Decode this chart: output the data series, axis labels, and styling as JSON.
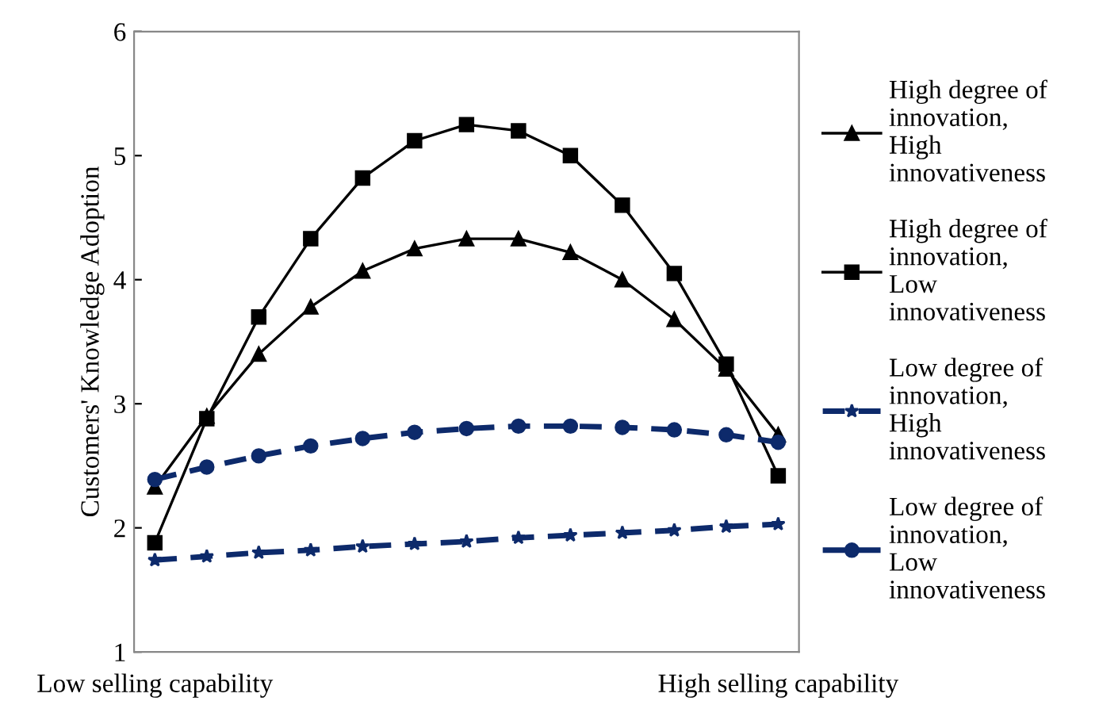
{
  "chart_data": {
    "type": "line",
    "ylabel": "Customers' Knowledge Adoption",
    "categories": [
      "Low selling capability",
      null,
      null,
      null,
      null,
      null,
      null,
      null,
      null,
      null,
      null,
      null,
      "High selling capability"
    ],
    "ylim": [
      1,
      6
    ],
    "yticks": [
      1,
      2,
      3,
      4,
      5,
      6
    ],
    "grid": false,
    "legend": "right",
    "series": [
      {
        "name": "High degree of innovation, High innovativeness",
        "color": "#000000",
        "marker": "triangle",
        "line_style": "solid",
        "values": [
          2.33,
          2.9,
          3.4,
          3.78,
          4.07,
          4.25,
          4.33,
          4.33,
          4.22,
          4.0,
          3.68,
          3.28,
          2.75
        ]
      },
      {
        "name": "High degree of innovation, Low innovativeness",
        "color": "#000000",
        "marker": "square",
        "line_style": "solid",
        "values": [
          1.88,
          2.88,
          3.7,
          4.33,
          4.82,
          5.12,
          5.25,
          5.2,
          5.0,
          4.6,
          4.05,
          3.32,
          2.42
        ]
      },
      {
        "name": "Low degree of innovation, High innovativeness",
        "color": "#0d2a6b",
        "marker": "star",
        "line_style": "dashed",
        "values": [
          1.74,
          1.77,
          1.8,
          1.82,
          1.85,
          1.87,
          1.89,
          1.92,
          1.94,
          1.96,
          1.98,
          2.01,
          2.03
        ]
      },
      {
        "name": "Low degree of innovation, Low innovativeness",
        "color": "#0d2a6b",
        "marker": "circle",
        "line_style": "dashed",
        "values": [
          2.39,
          2.49,
          2.58,
          2.66,
          2.72,
          2.77,
          2.8,
          2.82,
          2.82,
          2.81,
          2.79,
          2.75,
          2.69
        ]
      }
    ]
  }
}
